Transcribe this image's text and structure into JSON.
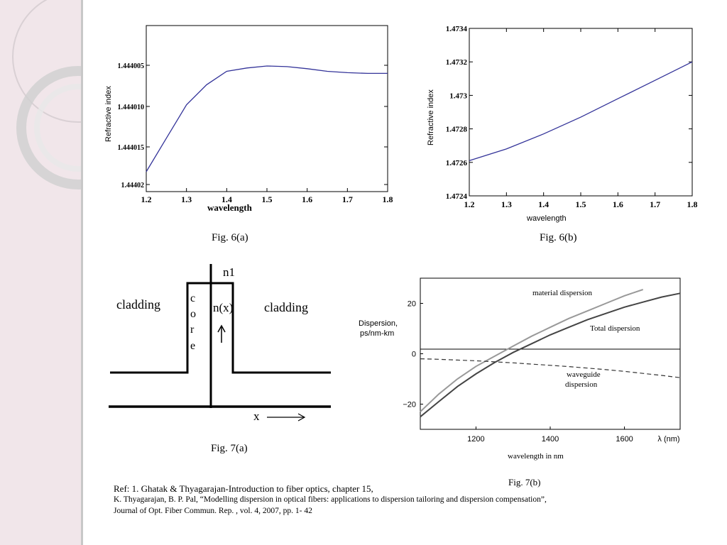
{
  "chart_data": [
    {
      "type": "line",
      "name": "fig6a",
      "xlabel": "wavelength",
      "ylabel": "Refractive index",
      "x_ticks": [
        "1.2",
        "1.3",
        "1.4",
        "1.5",
        "1.6",
        "1.7",
        "1.8"
      ],
      "y_tick_labels": [
        "1.444005",
        "1.444010",
        "1.444015",
        "1.44402"
      ],
      "xlim": [
        1.2,
        1.8
      ],
      "series": [
        {
          "x": [
            1.2,
            1.25,
            1.3,
            1.35,
            1.4,
            1.45,
            1.5,
            1.55,
            1.6,
            1.65,
            1.7,
            1.75,
            1.8
          ],
          "y": [
            1.44402,
            1.444015,
            1.44401,
            1.444007,
            1.444005,
            1.4440045,
            1.4440042,
            1.4440043,
            1.4440046,
            1.444005,
            1.4440052,
            1.4440053,
            1.4440053
          ]
        }
      ]
    },
    {
      "type": "line",
      "name": "fig6b",
      "xlabel": "wavelength",
      "ylabel": "Refractive index",
      "x_ticks": [
        "1.2",
        "1.3",
        "1.4",
        "1.5",
        "1.6",
        "1.7",
        "1.8"
      ],
      "y_tick_labels": [
        "1.4724",
        "1.4726",
        "1.4728",
        "1.473",
        "1.4732",
        "1.4734"
      ],
      "xlim": [
        1.2,
        1.8
      ],
      "ylim": [
        1.4724,
        1.4734
      ],
      "series": [
        {
          "x": [
            1.2,
            1.3,
            1.4,
            1.5,
            1.6,
            1.7,
            1.8
          ],
          "y": [
            1.47261,
            1.47268,
            1.47277,
            1.47287,
            1.47298,
            1.47309,
            1.4732
          ]
        }
      ]
    },
    {
      "type": "line",
      "name": "fig7b",
      "xlabel": "wavelength in nm",
      "ylabel": "Dispersion,\nps/nm-km",
      "xlim": [
        1050,
        1750
      ],
      "ylim": [
        -30,
        30
      ],
      "x_ticks": [
        "1200",
        "1400",
        "1600",
        "λ (nm)"
      ],
      "y_ticks": [
        20,
        0,
        -20
      ],
      "y_tick_labels": [
        "20",
        "0",
        "−20"
      ],
      "series": [
        {
          "name": "material dispersion",
          "x": [
            1050,
            1100,
            1150,
            1200,
            1250,
            1300,
            1350,
            1400,
            1450,
            1500,
            1550,
            1600,
            1650
          ],
          "y": [
            -23,
            -16,
            -10,
            -5,
            -1,
            3,
            7,
            10.5,
            14,
            17,
            20,
            23,
            25.5
          ]
        },
        {
          "name": "Total dispersion",
          "x": [
            1050,
            1100,
            1150,
            1200,
            1250,
            1300,
            1350,
            1400,
            1450,
            1500,
            1550,
            1600,
            1650,
            1700,
            1750
          ],
          "y": [
            -25,
            -19,
            -13,
            -8,
            -3.5,
            0.5,
            4,
            7.5,
            10.5,
            13.5,
            16,
            18.5,
            20.5,
            22.5,
            24
          ]
        },
        {
          "name": "waveguide dispersion",
          "x": [
            1050,
            1100,
            1150,
            1200,
            1250,
            1300,
            1350,
            1400,
            1450,
            1500,
            1550,
            1600,
            1650,
            1700,
            1750
          ],
          "y": [
            -2,
            -2.2,
            -2.5,
            -2.8,
            -3.2,
            -3.6,
            -4.1,
            -4.6,
            -5.1,
            -5.7,
            -6.3,
            -7,
            -7.8,
            -8.6,
            -9.5
          ]
        }
      ],
      "annotations": [
        "material dispersion",
        "Total dispersion",
        "waveguide",
        "dispersion"
      ]
    }
  ],
  "fig7a": {
    "cladding_left": "cladding",
    "cladding_right": "cladding",
    "core_letters": [
      "c",
      "o",
      "r",
      "e"
    ],
    "n1": "n1",
    "nx": "n(x)",
    "x_axis": "x"
  },
  "captions": {
    "fig6a": "Fig. 6(a)",
    "fig6b": "Fig. 6(b)",
    "fig7a": "Fig. 7(a)",
    "fig7b": "Fig. 7(b)"
  },
  "references": {
    "line1": "Ref:  1. Ghatak & Thyagarajan-Introduction to fiber optics,  chapter 15,",
    "line2": "K. Thyagarajan, B. P. Pal, “Modelling dispersion in optical fibers: applications to dispersion tailoring and dispersion compensation”,",
    "line3": "Journal of Opt. Fiber Commun. Rep. , vol. 4, 2007, pp. 1- 42"
  }
}
